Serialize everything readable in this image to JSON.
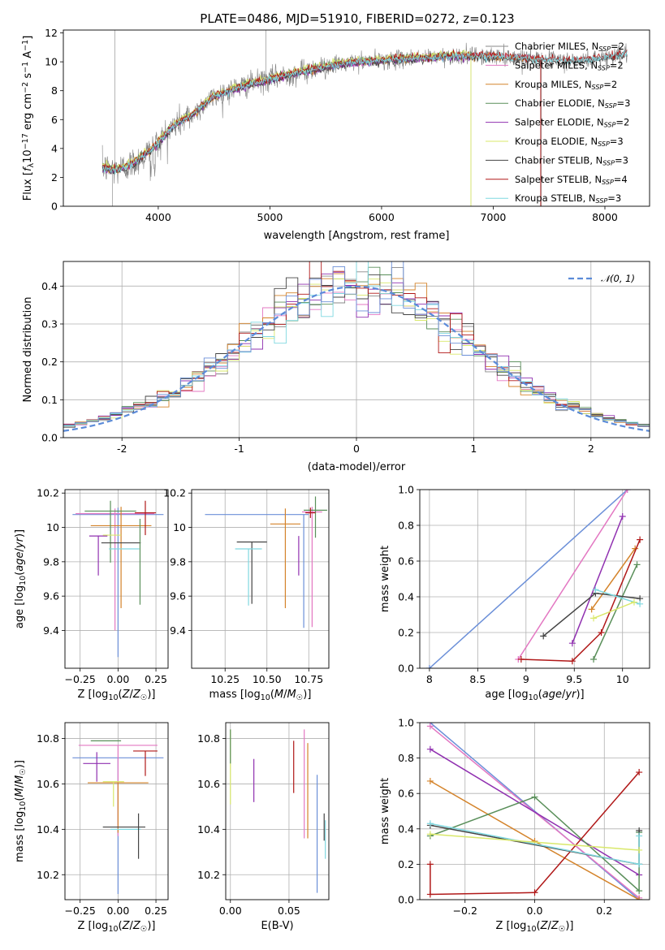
{
  "figure": {
    "title": "PLATE=0486, MJD=51910, FIBERID=0272, z=0.123",
    "colors": {
      "chabrier_miles": "#888888",
      "salpeter_miles": "#e377c2",
      "kroupa_miles": "#d4832a",
      "chabrier_elodie": "#5a8f5a",
      "salpeter_elodie": "#9030b0",
      "kroupa_elodie": "#d9e86a",
      "chabrier_stelib": "#444444",
      "salpeter_stelib": "#b01818",
      "kroupa_stelib": "#7fd8e0",
      "normal": "#5b8bd9",
      "blue": "#6b8fd8"
    }
  },
  "chart_data": [
    {
      "id": "spectrum",
      "type": "line",
      "xlabel": "wavelength [Angstrom, rest frame]",
      "ylabel": "Flux [f_λ 10^-17 erg cm^-2 s^-1 A^-1]",
      "xlim": [
        3150,
        8400
      ],
      "ylim": [
        0,
        12.2
      ],
      "xticks": [
        4000,
        5000,
        6000,
        7000,
        8000
      ],
      "yticks": [
        0,
        2,
        4,
        6,
        8,
        10,
        12
      ],
      "grid": false,
      "legend_position": "top-right",
      "legend": [
        {
          "label": "Chabrier MILES, N",
          "sub": "SSP",
          "tail": "=2",
          "color": "#888888"
        },
        {
          "label": "Salpeter MILES, N",
          "sub": "SSP",
          "tail": "=2",
          "color": "#e377c2"
        },
        {
          "label": "Kroupa MILES, N",
          "sub": "SSP",
          "tail": "=2",
          "color": "#d4832a"
        },
        {
          "label": "Chabrier ELODIE, N",
          "sub": "SSP",
          "tail": "=3",
          "color": "#5a8f5a"
        },
        {
          "label": "Salpeter ELODIE, N",
          "sub": "SSP",
          "tail": "=2",
          "color": "#9030b0"
        },
        {
          "label": "Kroupa ELODIE, N",
          "sub": "SSP",
          "tail": "=3",
          "color": "#d9e86a"
        },
        {
          "label": "Chabrier STELIB, N",
          "sub": "SSP",
          "tail": "=3",
          "color": "#444444"
        },
        {
          "label": "Salpeter STELIB, N",
          "sub": "SSP",
          "tail": "=4",
          "color": "#b01818"
        },
        {
          "label": "Kroupa STELIB, N",
          "sub": "SSP",
          "tail": "=3",
          "color": "#7fd8e0"
        }
      ],
      "data_continuum": {
        "x": [
          3500,
          3600,
          3700,
          3800,
          3900,
          4000,
          4100,
          4200,
          4300,
          4400,
          4500,
          4600,
          4700,
          4800,
          4900,
          5000,
          5200,
          5400,
          5600,
          5800,
          6000,
          6200,
          6400,
          6600,
          6800,
          7000,
          7200,
          7400,
          7600,
          7800,
          8000,
          8200
        ],
        "y": [
          2.7,
          2.5,
          2.7,
          3.1,
          3.7,
          4.4,
          5.3,
          5.9,
          6.3,
          7.0,
          7.6,
          7.9,
          8.2,
          8.4,
          8.6,
          8.8,
          9.2,
          9.5,
          9.8,
          10.0,
          10.1,
          10.2,
          10.3,
          10.4,
          10.4,
          10.4,
          10.3,
          10.2,
          10.1,
          10.1,
          10.3,
          10.6
        ]
      },
      "series": [
        {
          "name": "Chabrier MILES",
          "color": "#888888",
          "x_range": [
            3500,
            7400
          ],
          "offset": 0.05
        },
        {
          "name": "Salpeter MILES",
          "color": "#e377c2",
          "x_range": [
            3500,
            7400
          ],
          "offset": 0.0
        },
        {
          "name": "Kroupa MILES",
          "color": "#d4832a",
          "x_range": [
            3500,
            7400
          ],
          "offset": -0.05
        },
        {
          "name": "Chabrier ELODIE",
          "color": "#5a8f5a",
          "x_range": [
            3500,
            6800
          ],
          "offset": 0.1
        },
        {
          "name": "Salpeter ELODIE",
          "color": "#9030b0",
          "x_range": [
            3500,
            6800
          ],
          "offset": -0.1
        },
        {
          "name": "Kroupa ELODIE",
          "color": "#d9e86a",
          "x_range": [
            3500,
            6800
          ],
          "offset": 0.15
        },
        {
          "name": "Chabrier STELIB",
          "color": "#444444",
          "x_range": [
            3500,
            8200
          ],
          "offset": -0.12
        },
        {
          "name": "Salpeter STELIB",
          "color": "#b01818",
          "x_range": [
            3500,
            8200
          ],
          "offset": 0.08
        },
        {
          "name": "Kroupa STELIB",
          "color": "#7fd8e0",
          "x_range": [
            3500,
            8200
          ],
          "offset": -0.02
        }
      ]
    },
    {
      "id": "residuals",
      "type": "histogram",
      "xlabel": "(data-model)/error",
      "ylabel": "Normed distribution",
      "xlim": [
        -2.5,
        2.5
      ],
      "ylim": [
        0,
        0.465
      ],
      "xticks": [
        -2,
        -1,
        0,
        1,
        2
      ],
      "yticks": [
        0.0,
        0.1,
        0.2,
        0.3,
        0.4
      ],
      "grid": true,
      "legend_position": "top-right",
      "legend": [
        {
          "label": "𝒩(0, 1)",
          "color": "#5b8bd9",
          "style": "dashed"
        }
      ],
      "bin_edges_start": -2.5,
      "bin_width": 0.1
    },
    {
      "id": "age_vs_Z",
      "type": "errorbar",
      "xlabel": "Z [log10(Z/Z☉)]",
      "ylabel": "age  [log10(age/yr)]",
      "xlim": [
        -0.35,
        0.33
      ],
      "ylim": [
        9.18,
        10.22
      ],
      "xticks": [
        -0.25,
        0.0,
        0.25
      ],
      "xticklabels": [
        "−0.25",
        "0.00",
        "0.25"
      ],
      "yticks": [
        9.4,
        9.6,
        9.8,
        10.0,
        10.2
      ],
      "grid": true,
      "points": [
        {
          "x": 0.0,
          "y": 10.075,
          "xerr": 0.3,
          "yerr": [
            0.83,
            0.04
          ],
          "color": "#6b8fd8"
        },
        {
          "x": -0.02,
          "y": 10.08,
          "xerr": 0.26,
          "yerr": [
            0.68,
            0.03
          ],
          "color": "#e377c2"
        },
        {
          "x": 0.02,
          "y": 10.01,
          "xerr": 0.2,
          "yerr": [
            0.48,
            0.11
          ],
          "color": "#d4832a"
        },
        {
          "x": -0.05,
          "y": 10.095,
          "xerr": 0.17,
          "yerr": [
            0.3,
            0.06
          ],
          "color": "#5a8f5a"
        },
        {
          "x": -0.13,
          "y": 9.95,
          "xerr": 0.06,
          "yerr": [
            0.23,
            0.0
          ],
          "color": "#9030b0"
        },
        {
          "x": -0.04,
          "y": 9.955,
          "xerr": 0.06,
          "yerr": [
            0.0,
            0.0
          ],
          "color": "#d9e86a"
        },
        {
          "x": 0.02,
          "y": 9.91,
          "xerr": 0.13,
          "yerr": [
            0.0,
            0.0
          ],
          "color": "#444444"
        },
        {
          "x": 0.18,
          "y": 10.085,
          "xerr": 0.07,
          "yerr": [
            0.13,
            0.07
          ],
          "color": "#b01818"
        },
        {
          "x": 0.04,
          "y": 9.875,
          "xerr": 0.1,
          "yerr": [
            0.0,
            0.0
          ],
          "color": "#7fd8e0"
        },
        {
          "x": 0.145,
          "y": 9.9,
          "xerr": 0.0,
          "yerr": [
            0.35,
            0.15
          ],
          "color": "#5a8f5a"
        }
      ]
    },
    {
      "id": "age_vs_mass",
      "type": "errorbar",
      "xlabel": "mass [log10(M/M☉)]",
      "ylabel": "",
      "xlim": [
        10.05,
        10.87
      ],
      "ylim": [
        9.18,
        10.22
      ],
      "xticks": [
        10.25,
        10.5,
        10.75
      ],
      "xticklabels": [
        "10.25",
        "10.50",
        "10.75"
      ],
      "yticks": [
        9.4,
        9.6,
        9.8,
        10.0,
        10.2
      ],
      "grid": true,
      "points": [
        {
          "x": 10.44,
          "y": 10.075,
          "xerr": 0.31,
          "yerr": [
            0.0,
            0.0
          ],
          "color": "#6b8fd8"
        },
        {
          "x": 10.72,
          "y": 10.075,
          "xerr": 0.0,
          "yerr": [
            0.66,
            0.0
          ],
          "color": "#6b8fd8"
        },
        {
          "x": 10.77,
          "y": 10.09,
          "xerr": 0.06,
          "yerr": [
            0.67,
            0.03
          ],
          "color": "#e377c2"
        },
        {
          "x": 10.61,
          "y": 10.02,
          "xerr": 0.09,
          "yerr": [
            0.49,
            0.09
          ],
          "color": "#d4832a"
        },
        {
          "x": 10.79,
          "y": 10.1,
          "xerr": 0.07,
          "yerr": [
            0.16,
            0.08
          ],
          "color": "#5a8f5a"
        },
        {
          "x": 10.69,
          "y": 9.95,
          "xerr": 0.0,
          "yerr": [
            0.23,
            0.0
          ],
          "color": "#9030b0"
        },
        {
          "x": 10.615,
          "y": 9.955,
          "xerr": 0.0,
          "yerr": [
            0.0,
            0.0
          ],
          "color": "#d9e86a"
        },
        {
          "x": 10.41,
          "y": 9.915,
          "xerr": 0.09,
          "yerr": [
            0.36,
            0.0
          ],
          "color": "#444444"
        },
        {
          "x": 10.76,
          "y": 10.085,
          "xerr": 0.03,
          "yerr": [
            0.03,
            0.03
          ],
          "color": "#b01818"
        },
        {
          "x": 10.39,
          "y": 9.875,
          "xerr": 0.08,
          "yerr": [
            0.33,
            0.0
          ],
          "color": "#7fd8e0"
        }
      ]
    },
    {
      "id": "weight_vs_age",
      "type": "line",
      "xlabel": "age  [log10(age/yr)]",
      "ylabel": "mass weight",
      "xlim": [
        7.9,
        10.28
      ],
      "ylim": [
        0.0,
        1.0
      ],
      "xticks": [
        8.0,
        8.5,
        9.0,
        9.5,
        10.0
      ],
      "yticks": [
        0.0,
        0.2,
        0.4,
        0.6,
        0.8,
        1.0
      ],
      "grid": true,
      "series": [
        {
          "color": "#6b8fd8",
          "x": [
            8.0,
            10.05
          ],
          "y": [
            0.0,
            1.0
          ]
        },
        {
          "color": "#e377c2",
          "x": [
            8.92,
            10.05
          ],
          "y": [
            0.05,
            1.0
          ]
        },
        {
          "color": "#9030b0",
          "x": [
            9.48,
            10.0
          ],
          "y": [
            0.14,
            0.85
          ]
        },
        {
          "color": "#d4832a",
          "x": [
            9.68,
            10.13
          ],
          "y": [
            0.33,
            0.67
          ]
        },
        {
          "color": "#5a8f5a",
          "x": [
            9.7,
            10.15
          ],
          "y": [
            0.05,
            0.58
          ]
        },
        {
          "color": "#b01818",
          "x": [
            8.95,
            9.48,
            9.78,
            10.18
          ],
          "y": [
            0.05,
            0.04,
            0.2,
            0.72
          ]
        },
        {
          "color": "#444444",
          "x": [
            9.18,
            9.72,
            10.18
          ],
          "y": [
            0.18,
            0.42,
            0.39
          ]
        },
        {
          "color": "#7fd8e0",
          "x": [
            9.72,
            10.18
          ],
          "y": [
            0.44,
            0.36
          ]
        },
        {
          "color": "#d9e86a",
          "x": [
            9.7,
            10.12
          ],
          "y": [
            0.28,
            0.37
          ]
        }
      ]
    },
    {
      "id": "mass_vs_Z",
      "type": "errorbar",
      "xlabel": "Z [log10(Z/Z☉)]",
      "ylabel": "mass [log10(M/M☉)]",
      "xlim": [
        -0.35,
        0.33
      ],
      "ylim": [
        10.09,
        10.87
      ],
      "xticks": [
        -0.25,
        0.0,
        0.25
      ],
      "xticklabels": [
        "−0.25",
        "0.00",
        "0.25"
      ],
      "yticks": [
        10.2,
        10.4,
        10.6,
        10.8
      ],
      "grid": true,
      "points": [
        {
          "x": 0.0,
          "y": 10.715,
          "xerr": 0.3,
          "yerr": [
            0.6,
            0.0
          ],
          "color": "#6b8fd8"
        },
        {
          "x": 0.0,
          "y": 10.77,
          "xerr": 0.26,
          "yerr": [
            0.4,
            0.0
          ],
          "color": "#e377c2"
        },
        {
          "x": 0.0,
          "y": 10.605,
          "xerr": 0.2,
          "yerr": [
            0.22,
            0.0
          ],
          "color": "#d4832a"
        },
        {
          "x": -0.08,
          "y": 10.79,
          "xerr": 0.1,
          "yerr": [
            0.0,
            0.0
          ],
          "color": "#5a8f5a"
        },
        {
          "x": -0.14,
          "y": 10.69,
          "xerr": 0.09,
          "yerr": [
            0.08,
            0.05
          ],
          "color": "#9030b0"
        },
        {
          "x": -0.03,
          "y": 10.61,
          "xerr": 0.07,
          "yerr": [
            0.11,
            0.0
          ],
          "color": "#d9e86a"
        },
        {
          "x": 0.04,
          "y": 10.41,
          "xerr": 0.14,
          "yerr": [
            0.0,
            0.0
          ],
          "color": "#444444"
        },
        {
          "x": 0.18,
          "y": 10.745,
          "xerr": 0.08,
          "yerr": [
            0.11,
            0.0
          ],
          "color": "#b01818"
        },
        {
          "x": 0.05,
          "y": 10.4,
          "xerr": 0.1,
          "yerr": [
            0.0,
            0.0
          ],
          "color": "#7fd8e0"
        },
        {
          "x": 0.135,
          "y": 10.4,
          "xerr": 0.0,
          "yerr": [
            0.13,
            0.07
          ],
          "color": "#444444"
        }
      ]
    },
    {
      "id": "mass_vs_ebv",
      "type": "errorbar",
      "xlabel": "E(B-V)",
      "ylabel": "",
      "xlim": [
        -0.004,
        0.084
      ],
      "ylim": [
        10.09,
        10.87
      ],
      "xticks": [
        0.0,
        0.05
      ],
      "xticklabels": [
        "0.00",
        "0.05"
      ],
      "yticks": [
        10.2,
        10.4,
        10.6,
        10.8
      ],
      "grid": true,
      "points": [
        {
          "x": 0.0,
          "y": 10.7,
          "xerr": 0.0,
          "yerr": [
            0.19,
            0.14
          ],
          "color": "#d9e86a"
        },
        {
          "x": 0.0,
          "y": 10.79,
          "xerr": 0.0,
          "yerr": [
            0.1,
            0.05
          ],
          "color": "#5a8f5a"
        },
        {
          "x": 0.02,
          "y": 10.62,
          "xerr": 0.0,
          "yerr": [
            0.1,
            0.09
          ],
          "color": "#9030b0"
        },
        {
          "x": 0.054,
          "y": 10.67,
          "xerr": 0.0,
          "yerr": [
            0.11,
            0.12
          ],
          "color": "#b01818"
        },
        {
          "x": 0.063,
          "y": 10.6,
          "xerr": 0.0,
          "yerr": [
            0.24,
            0.24
          ],
          "color": "#e377c2"
        },
        {
          "x": 0.066,
          "y": 10.56,
          "xerr": 0.0,
          "yerr": [
            0.2,
            0.22
          ],
          "color": "#d4832a"
        },
        {
          "x": 0.074,
          "y": 10.42,
          "xerr": 0.0,
          "yerr": [
            0.3,
            0.22
          ],
          "color": "#6b8fd8"
        },
        {
          "x": 0.08,
          "y": 10.4,
          "xerr": 0.0,
          "yerr": [
            0.05,
            0.07
          ],
          "color": "#444444"
        },
        {
          "x": 0.081,
          "y": 10.35,
          "xerr": 0.0,
          "yerr": [
            0.08,
            0.09
          ],
          "color": "#7fd8e0"
        }
      ]
    },
    {
      "id": "weight_vs_Z",
      "type": "line",
      "xlabel": "Z [log10(Z/Z☉)]",
      "ylabel": "mass weight",
      "xlim": [
        -0.33,
        0.33
      ],
      "ylim": [
        0.0,
        1.0
      ],
      "xticks": [
        -0.2,
        0.0,
        0.2
      ],
      "xticklabels": [
        "−0.2",
        "0.0",
        "0.2"
      ],
      "yticks": [
        0.0,
        0.2,
        0.4,
        0.6,
        0.8,
        1.0
      ],
      "grid": true,
      "series": [
        {
          "color": "#6b8fd8",
          "x": [
            -0.3,
            0.3
          ],
          "y": [
            1.0,
            0.0
          ]
        },
        {
          "color": "#e377c2",
          "x": [
            -0.3,
            0.3
          ],
          "y": [
            0.98,
            0.01
          ]
        },
        {
          "color": "#9030b0",
          "x": [
            -0.3,
            0.3
          ],
          "y": [
            0.85,
            0.14
          ]
        },
        {
          "color": "#d4832a",
          "x": [
            -0.3,
            0.0,
            0.3
          ],
          "y": [
            0.67,
            0.33,
            0.0
          ]
        },
        {
          "color": "#5a8f5a",
          "x": [
            -0.3,
            0.0,
            0.3,
            0.3
          ],
          "y": [
            0.36,
            0.58,
            0.05,
            0.38
          ]
        },
        {
          "color": "#b01818",
          "x": [
            -0.3,
            -0.3,
            0.0,
            0.3
          ],
          "y": [
            0.2,
            0.03,
            0.04,
            0.72
          ]
        },
        {
          "color": "#444444",
          "x": [
            -0.3,
            0.3,
            0.3
          ],
          "y": [
            0.42,
            0.2,
            0.39
          ]
        },
        {
          "color": "#7fd8e0",
          "x": [
            -0.3,
            0.3,
            0.3
          ],
          "y": [
            0.43,
            0.2,
            0.36
          ]
        },
        {
          "color": "#d9e86a",
          "x": [
            -0.3,
            0.3
          ],
          "y": [
            0.37,
            0.28
          ]
        }
      ]
    }
  ]
}
